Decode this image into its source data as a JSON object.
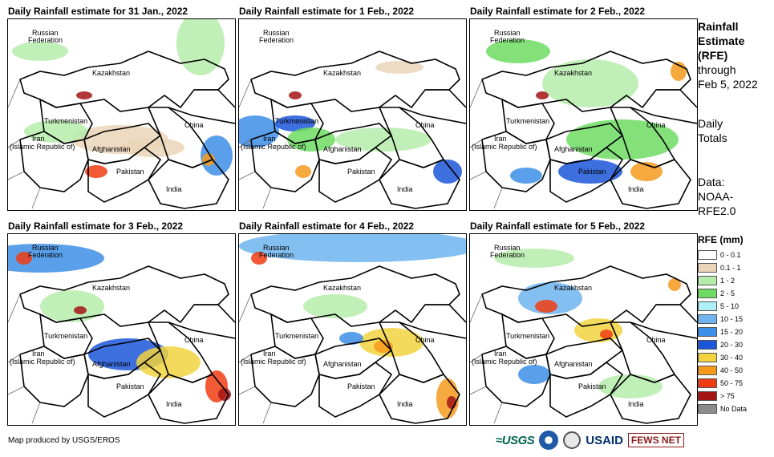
{
  "panels": [
    {
      "title": "Daily Rainfall estimate for 31 Jan., 2022"
    },
    {
      "title": "Daily Rainfall estimate for 1 Feb., 2022"
    },
    {
      "title": "Daily Rainfall estimate for 2 Feb., 2022"
    },
    {
      "title": "Daily Rainfall estimate for 3 Feb., 2022"
    },
    {
      "title": "Daily Rainfall estimate for 4 Feb., 2022"
    },
    {
      "title": "Daily Rainfall estimate for 5 Feb., 2022"
    }
  ],
  "map_labels": {
    "russia1": "Russian",
    "russia2": "Federation",
    "kazakhstan": "Kazakhstan",
    "turkmenistan": "Turkmenistan",
    "iran1": "Iran",
    "iran2": "(Islamic Republic of)",
    "afghanistan": "Afghanistan",
    "pakistan": "Pakistan",
    "china": "China",
    "india": "India"
  },
  "side": {
    "title1": "Rainfall",
    "title2": "Estimate",
    "title3": "(RFE)",
    "through1": "through",
    "through2": "Feb 5, 2022",
    "daily1": "Daily",
    "daily2": "Totals",
    "data1": "Data:",
    "data2": "NOAA-",
    "data3": "RFE2.0"
  },
  "legend": {
    "title": "RFE (mm)",
    "items": [
      {
        "label": "0 - 0.1",
        "color": "#ffffff"
      },
      {
        "label": "0.1 - 1",
        "color": "#ead5b8"
      },
      {
        "label": "1 - 2",
        "color": "#b6ecab"
      },
      {
        "label": "2 - 5",
        "color": "#6fdc63"
      },
      {
        "label": "5 - 10",
        "color": "#aeeef7"
      },
      {
        "label": "10 - 15",
        "color": "#6fb4ef"
      },
      {
        "label": "15 - 20",
        "color": "#3d8ee6"
      },
      {
        "label": "20 - 30",
        "color": "#1c56d8"
      },
      {
        "label": "30 - 40",
        "color": "#f2d33f"
      },
      {
        "label": "40 - 50",
        "color": "#f59a1c"
      },
      {
        "label": "50 - 75",
        "color": "#f03c12"
      },
      {
        "label": "> 75",
        "color": "#a31515"
      },
      {
        "label": "No Data",
        "color": "#8c8c8c"
      }
    ]
  },
  "credit": "Map produced by USGS/EROS",
  "logos": {
    "usgs": "≈USGS",
    "usaid": "USAID",
    "fews": "FEWS NET"
  }
}
